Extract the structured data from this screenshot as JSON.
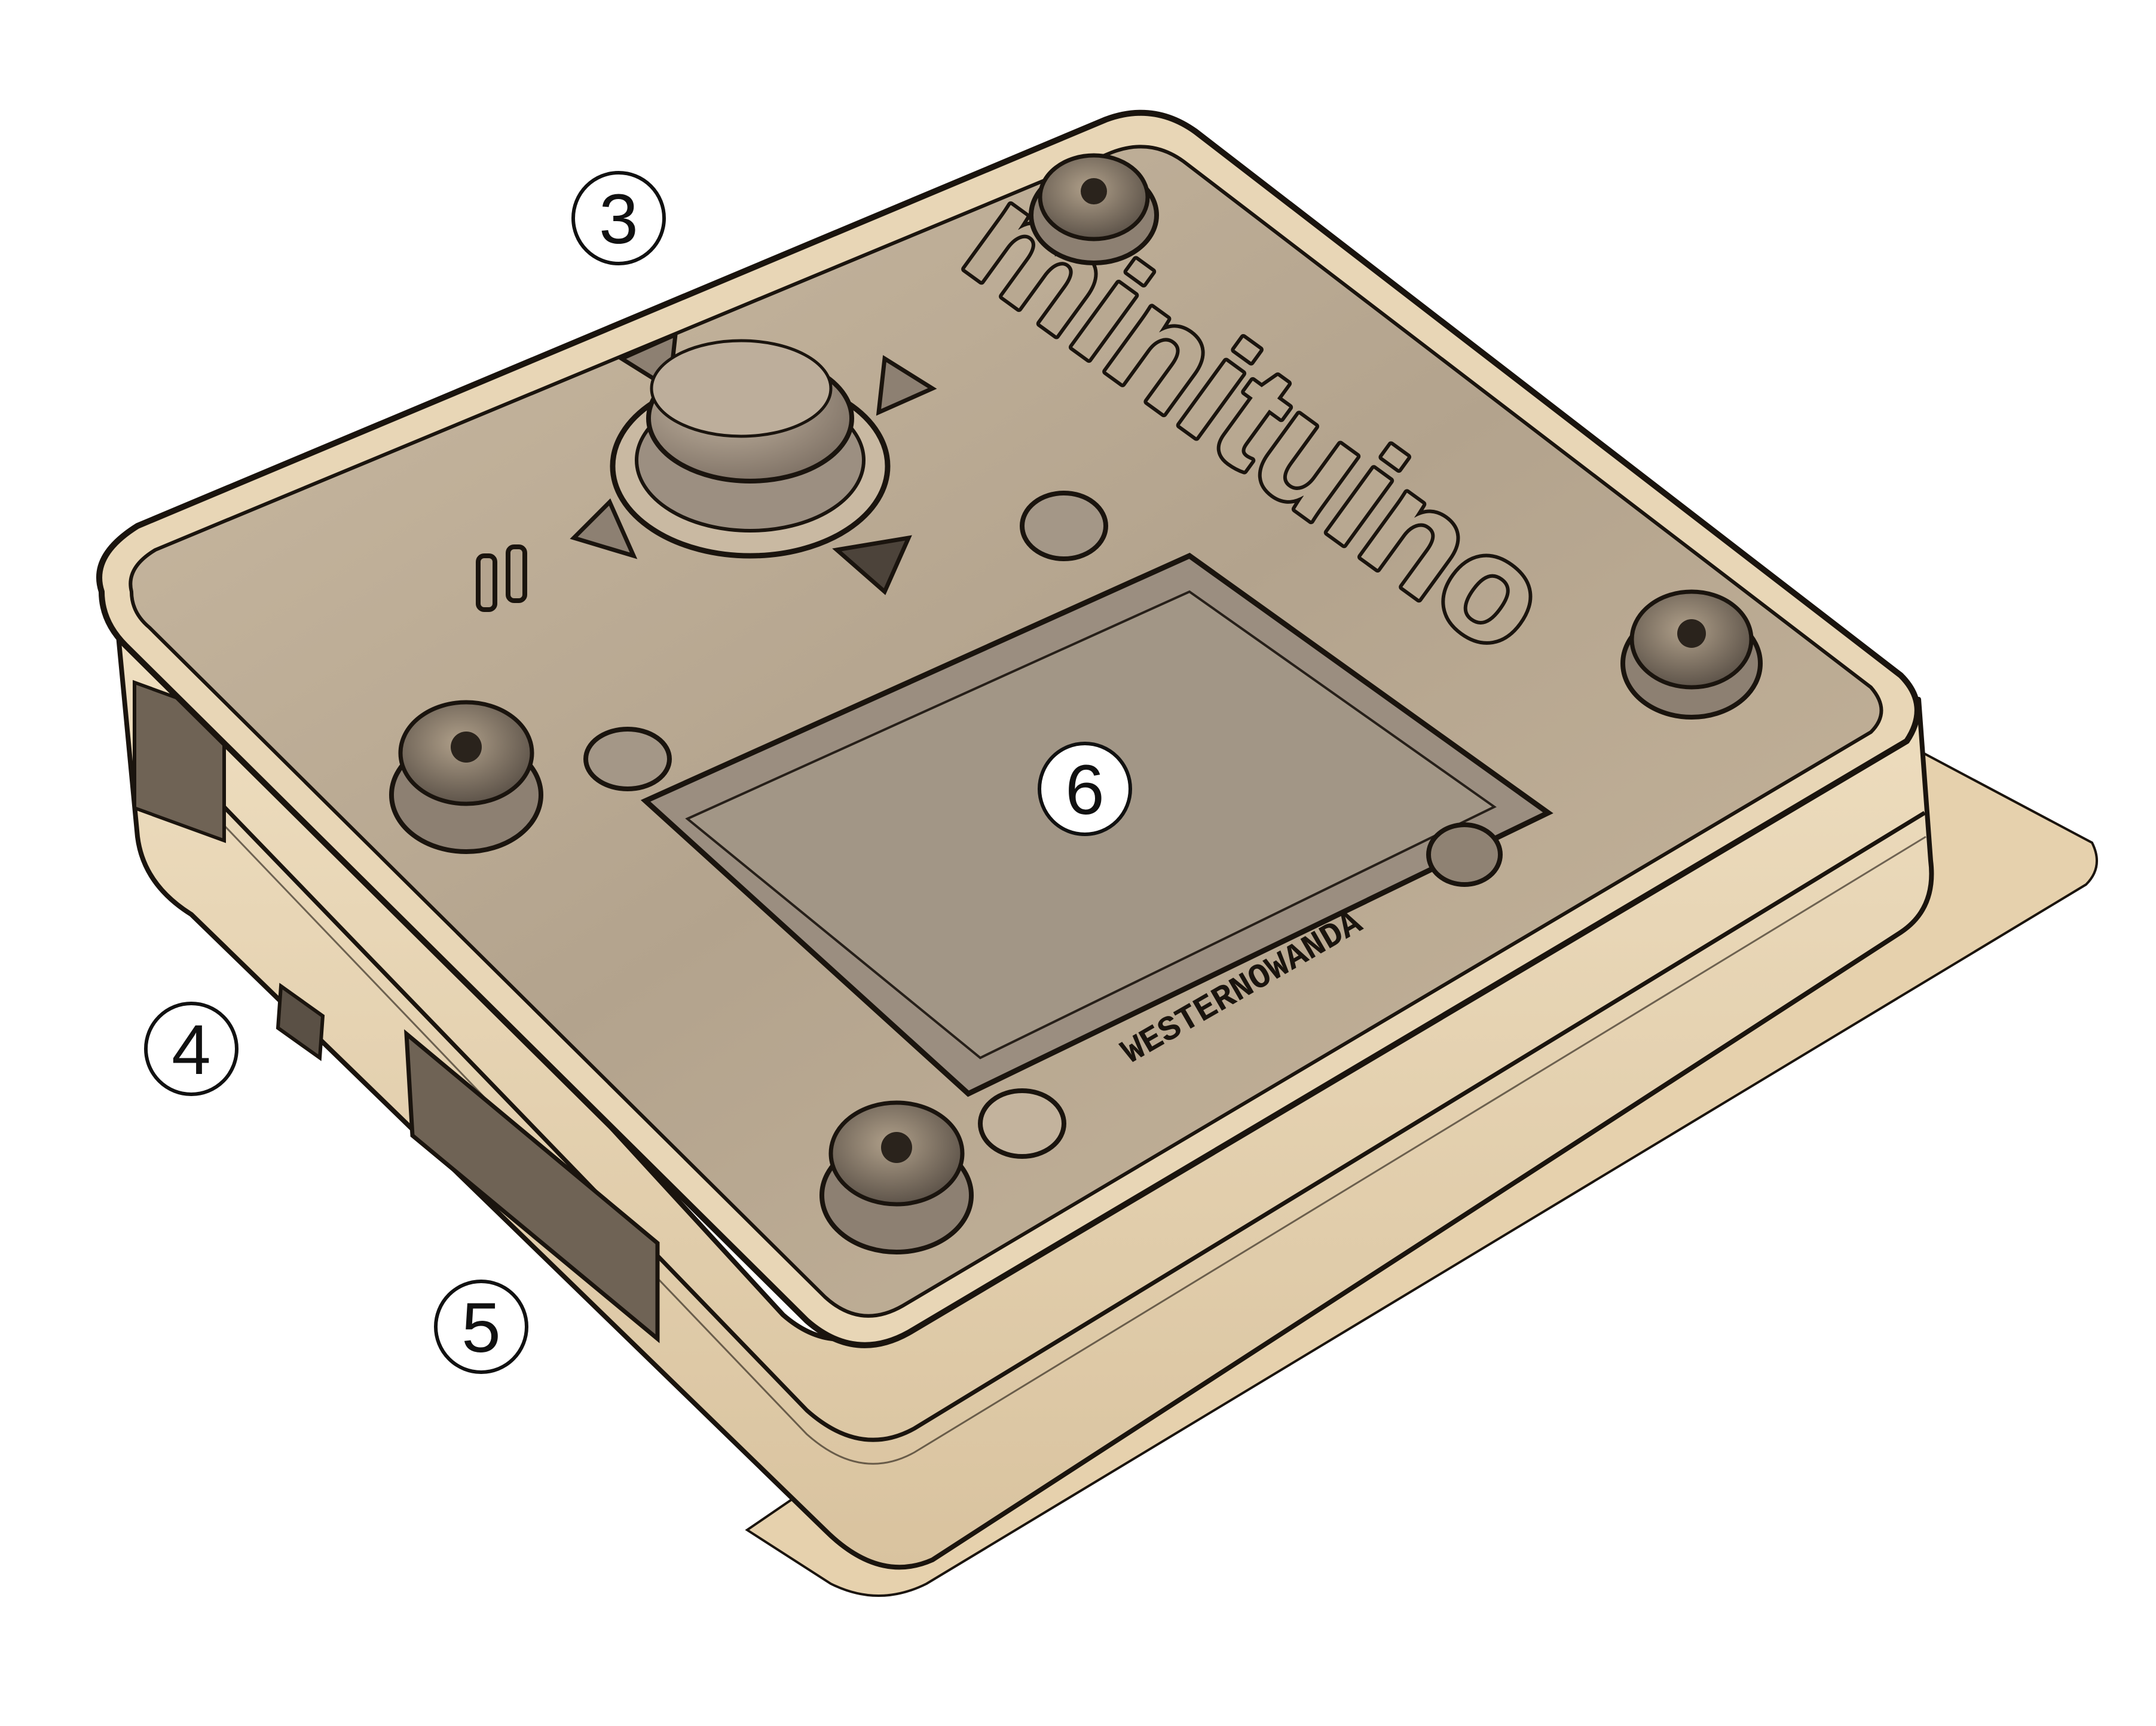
{
  "device": {
    "logo_text": "minituino",
    "pcb_marking": "WESTERNOWANDA",
    "colors": {
      "shell": "#e8d5b4",
      "shell_shadow": "#c8b08c",
      "top_panel": "#b9a891",
      "screen": "#9a8d7f",
      "outline": "#1a140e",
      "base_shadow": "#e3cda9"
    }
  },
  "callouts": [
    {
      "label": "3"
    },
    {
      "label": "4"
    },
    {
      "label": "5"
    },
    {
      "label": "6"
    }
  ]
}
